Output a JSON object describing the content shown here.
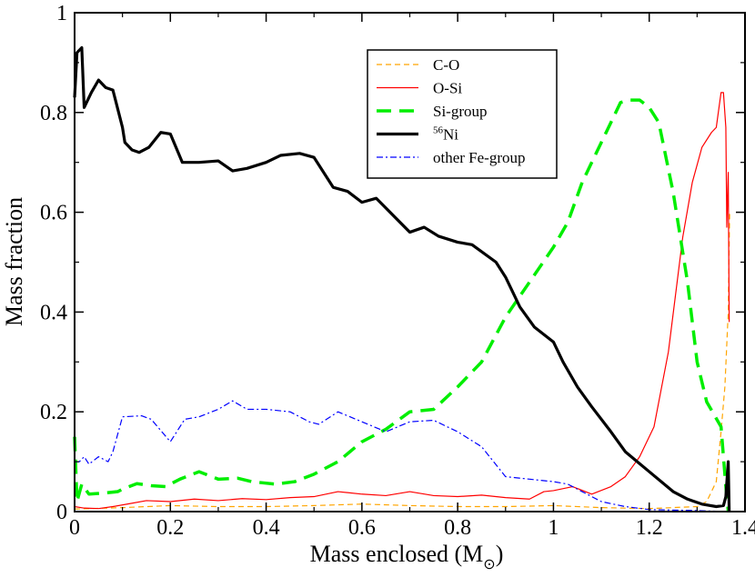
{
  "chart_data": {
    "type": "line",
    "xlabel": "Mass enclosed (M",
    "xlabel_sub": "⊙",
    "xlabel_close": ")",
    "ylabel": "Mass fraction",
    "xlim": [
      0,
      1.4
    ],
    "ylim": [
      0,
      1
    ],
    "xticks": [
      "0",
      "0.2",
      "0.4",
      "0.6",
      "0.8",
      "1",
      "1.2",
      "1.4"
    ],
    "yticks": [
      "0",
      "0.2",
      "0.4",
      "0.6",
      "0.8",
      "1"
    ],
    "grid": false,
    "legend_position": "top-right",
    "series": [
      {
        "name": "C-O",
        "color": "#ffa500",
        "dash": "dashed-thin",
        "points": [
          [
            0,
            0.005
          ],
          [
            0.1,
            0.008
          ],
          [
            0.2,
            0.012
          ],
          [
            0.3,
            0.01
          ],
          [
            0.4,
            0.01
          ],
          [
            0.5,
            0.012
          ],
          [
            0.6,
            0.015
          ],
          [
            0.7,
            0.012
          ],
          [
            0.8,
            0.01
          ],
          [
            0.9,
            0.01
          ],
          [
            1.0,
            0.012
          ],
          [
            1.1,
            0.008
          ],
          [
            1.2,
            0.006
          ],
          [
            1.3,
            0.01
          ],
          [
            1.32,
            0.02
          ],
          [
            1.34,
            0.06
          ],
          [
            1.35,
            0.16
          ],
          [
            1.358,
            0.25
          ],
          [
            1.365,
            0.4
          ],
          [
            1.368,
            0.6
          ]
        ]
      },
      {
        "name": "O-Si",
        "color": "#ff0000",
        "dash": "solid-thin",
        "points": [
          [
            0,
            0.01
          ],
          [
            0.02,
            0.007
          ],
          [
            0.05,
            0.006
          ],
          [
            0.08,
            0.01
          ],
          [
            0.11,
            0.015
          ],
          [
            0.15,
            0.022
          ],
          [
            0.2,
            0.02
          ],
          [
            0.25,
            0.025
          ],
          [
            0.3,
            0.022
          ],
          [
            0.35,
            0.026
          ],
          [
            0.4,
            0.024
          ],
          [
            0.45,
            0.028
          ],
          [
            0.5,
            0.03
          ],
          [
            0.55,
            0.04
          ],
          [
            0.6,
            0.035
          ],
          [
            0.65,
            0.032
          ],
          [
            0.7,
            0.04
          ],
          [
            0.75,
            0.032
          ],
          [
            0.8,
            0.03
          ],
          [
            0.85,
            0.033
          ],
          [
            0.9,
            0.028
          ],
          [
            0.95,
            0.025
          ],
          [
            0.98,
            0.04
          ],
          [
            1.0,
            0.042
          ],
          [
            1.04,
            0.05
          ],
          [
            1.08,
            0.035
          ],
          [
            1.12,
            0.05
          ],
          [
            1.15,
            0.07
          ],
          [
            1.18,
            0.11
          ],
          [
            1.21,
            0.17
          ],
          [
            1.24,
            0.32
          ],
          [
            1.27,
            0.55
          ],
          [
            1.29,
            0.66
          ],
          [
            1.31,
            0.73
          ],
          [
            1.33,
            0.76
          ],
          [
            1.34,
            0.77
          ],
          [
            1.35,
            0.84
          ],
          [
            1.355,
            0.84
          ],
          [
            1.36,
            0.77
          ],
          [
            1.362,
            0.57
          ],
          [
            1.365,
            0.68
          ],
          [
            1.367,
            0.38
          ]
        ]
      },
      {
        "name": "Si-group",
        "color": "#00ee00",
        "dash": "dashed-thick",
        "points": [
          [
            0,
            0.15
          ],
          [
            0.005,
            0.02
          ],
          [
            0.015,
            0.055
          ],
          [
            0.03,
            0.035
          ],
          [
            0.06,
            0.037
          ],
          [
            0.09,
            0.04
          ],
          [
            0.1,
            0.045
          ],
          [
            0.13,
            0.056
          ],
          [
            0.16,
            0.052
          ],
          [
            0.19,
            0.05
          ],
          [
            0.22,
            0.065
          ],
          [
            0.26,
            0.08
          ],
          [
            0.3,
            0.065
          ],
          [
            0.34,
            0.067
          ],
          [
            0.37,
            0.06
          ],
          [
            0.42,
            0.055
          ],
          [
            0.46,
            0.06
          ],
          [
            0.5,
            0.075
          ],
          [
            0.55,
            0.1
          ],
          [
            0.6,
            0.14
          ],
          [
            0.65,
            0.165
          ],
          [
            0.7,
            0.2
          ],
          [
            0.75,
            0.205
          ],
          [
            0.8,
            0.25
          ],
          [
            0.85,
            0.3
          ],
          [
            0.9,
            0.39
          ],
          [
            0.95,
            0.46
          ],
          [
            1.0,
            0.53
          ],
          [
            1.03,
            0.58
          ],
          [
            1.06,
            0.66
          ],
          [
            1.1,
            0.74
          ],
          [
            1.14,
            0.82
          ],
          [
            1.16,
            0.825
          ],
          [
            1.18,
            0.825
          ],
          [
            1.2,
            0.81
          ],
          [
            1.22,
            0.78
          ],
          [
            1.25,
            0.64
          ],
          [
            1.28,
            0.46
          ],
          [
            1.3,
            0.3
          ],
          [
            1.32,
            0.22
          ],
          [
            1.35,
            0.17
          ],
          [
            1.36,
            0.05
          ],
          [
            1.365,
            0.0
          ]
        ]
      },
      {
        "name": "Ni",
        "name_sup": "56",
        "color": "#000000",
        "dash": "solid-thick",
        "points": [
          [
            0,
            0.83
          ],
          [
            0.005,
            0.92
          ],
          [
            0.015,
            0.93
          ],
          [
            0.02,
            0.81
          ],
          [
            0.035,
            0.84
          ],
          [
            0.05,
            0.865
          ],
          [
            0.065,
            0.85
          ],
          [
            0.08,
            0.845
          ],
          [
            0.1,
            0.77
          ],
          [
            0.105,
            0.74
          ],
          [
            0.12,
            0.725
          ],
          [
            0.135,
            0.72
          ],
          [
            0.155,
            0.73
          ],
          [
            0.18,
            0.76
          ],
          [
            0.2,
            0.757
          ],
          [
            0.225,
            0.7
          ],
          [
            0.26,
            0.7
          ],
          [
            0.3,
            0.703
          ],
          [
            0.33,
            0.683
          ],
          [
            0.36,
            0.688
          ],
          [
            0.4,
            0.7
          ],
          [
            0.43,
            0.714
          ],
          [
            0.47,
            0.718
          ],
          [
            0.5,
            0.71
          ],
          [
            0.54,
            0.65
          ],
          [
            0.57,
            0.642
          ],
          [
            0.6,
            0.62
          ],
          [
            0.63,
            0.628
          ],
          [
            0.7,
            0.56
          ],
          [
            0.73,
            0.57
          ],
          [
            0.76,
            0.552
          ],
          [
            0.8,
            0.54
          ],
          [
            0.83,
            0.535
          ],
          [
            0.88,
            0.5
          ],
          [
            0.9,
            0.47
          ],
          [
            0.93,
            0.41
          ],
          [
            0.96,
            0.37
          ],
          [
            1.0,
            0.34
          ],
          [
            1.02,
            0.3
          ],
          [
            1.05,
            0.25
          ],
          [
            1.08,
            0.21
          ],
          [
            1.12,
            0.16
          ],
          [
            1.15,
            0.12
          ],
          [
            1.2,
            0.08
          ],
          [
            1.25,
            0.04
          ],
          [
            1.28,
            0.025
          ],
          [
            1.31,
            0.015
          ],
          [
            1.34,
            0.01
          ],
          [
            1.355,
            0.012
          ],
          [
            1.36,
            0.03
          ],
          [
            1.365,
            0.1
          ],
          [
            1.367,
            0.0
          ]
        ]
      },
      {
        "name": "other Fe-group",
        "color": "#0000ff",
        "dash": "dashdot-thin",
        "points": [
          [
            0,
            0.1
          ],
          [
            0.01,
            0.1
          ],
          [
            0.02,
            0.11
          ],
          [
            0.03,
            0.095
          ],
          [
            0.05,
            0.11
          ],
          [
            0.07,
            0.1
          ],
          [
            0.08,
            0.12
          ],
          [
            0.1,
            0.19
          ],
          [
            0.14,
            0.192
          ],
          [
            0.16,
            0.185
          ],
          [
            0.2,
            0.14
          ],
          [
            0.23,
            0.185
          ],
          [
            0.26,
            0.19
          ],
          [
            0.3,
            0.205
          ],
          [
            0.33,
            0.222
          ],
          [
            0.36,
            0.205
          ],
          [
            0.4,
            0.205
          ],
          [
            0.45,
            0.2
          ],
          [
            0.49,
            0.18
          ],
          [
            0.51,
            0.175
          ],
          [
            0.55,
            0.2
          ],
          [
            0.6,
            0.18
          ],
          [
            0.65,
            0.16
          ],
          [
            0.7,
            0.18
          ],
          [
            0.75,
            0.183
          ],
          [
            0.8,
            0.16
          ],
          [
            0.85,
            0.13
          ],
          [
            0.9,
            0.07
          ],
          [
            0.95,
            0.065
          ],
          [
            1.0,
            0.06
          ],
          [
            1.03,
            0.055
          ],
          [
            1.06,
            0.04
          ],
          [
            1.1,
            0.02
          ],
          [
            1.15,
            0.01
          ],
          [
            1.2,
            0.004
          ],
          [
            1.3,
            0.002
          ],
          [
            1.36,
            0.0
          ]
        ]
      }
    ]
  }
}
